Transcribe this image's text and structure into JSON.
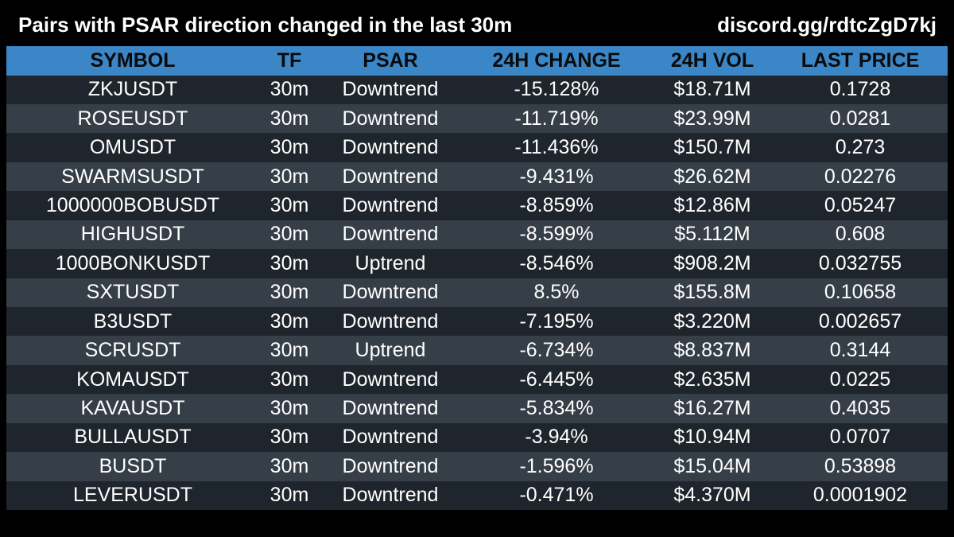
{
  "header": {
    "title": "Pairs with PSAR direction changed in the last 30m",
    "link": "discord.gg/rdtcZgD7kj"
  },
  "table": {
    "columns": [
      "SYMBOL",
      "TF",
      "PSAR",
      "24H CHANGE",
      "24H VOL",
      "LAST PRICE"
    ],
    "rows": [
      [
        "ZKJUSDT",
        "30m",
        "Downtrend",
        "-15.128%",
        "$18.71M",
        "0.1728"
      ],
      [
        "ROSEUSDT",
        "30m",
        "Downtrend",
        "-11.719%",
        "$23.99M",
        "0.0281"
      ],
      [
        "OMUSDT",
        "30m",
        "Downtrend",
        "-11.436%",
        "$150.7M",
        "0.273"
      ],
      [
        "SWARMSUSDT",
        "30m",
        "Downtrend",
        "-9.431%",
        "$26.62M",
        "0.02276"
      ],
      [
        "1000000BOBUSDT",
        "30m",
        "Downtrend",
        "-8.859%",
        "$12.86M",
        "0.05247"
      ],
      [
        "HIGHUSDT",
        "30m",
        "Downtrend",
        "-8.599%",
        "$5.112M",
        "0.608"
      ],
      [
        "1000BONKUSDT",
        "30m",
        "Uptrend",
        "-8.546%",
        "$908.2M",
        "0.032755"
      ],
      [
        "SXTUSDT",
        "30m",
        "Downtrend",
        "8.5%",
        "$155.8M",
        "0.10658"
      ],
      [
        "B3USDT",
        "30m",
        "Downtrend",
        "-7.195%",
        "$3.220M",
        "0.002657"
      ],
      [
        "SCRUSDT",
        "30m",
        "Uptrend",
        "-6.734%",
        "$8.837M",
        "0.3144"
      ],
      [
        "KOMAUSDT",
        "30m",
        "Downtrend",
        "-6.445%",
        "$2.635M",
        "0.0225"
      ],
      [
        "KAVAUSDT",
        "30m",
        "Downtrend",
        "-5.834%",
        "$16.27M",
        "0.4035"
      ],
      [
        "BULLAUSDT",
        "30m",
        "Downtrend",
        "-3.94%",
        "$10.94M",
        "0.0707"
      ],
      [
        "BUSDT",
        "30m",
        "Downtrend",
        "-1.596%",
        "$15.04M",
        "0.53898"
      ],
      [
        "LEVERUSDT",
        "30m",
        "Downtrend",
        "-0.471%",
        "$4.370M",
        "0.0001902"
      ]
    ]
  },
  "colors": {
    "background": "#000000",
    "header_row": "#3a86c6",
    "row_odd": "#1f252d",
    "row_even": "#363e48",
    "text": "#ffffff"
  }
}
